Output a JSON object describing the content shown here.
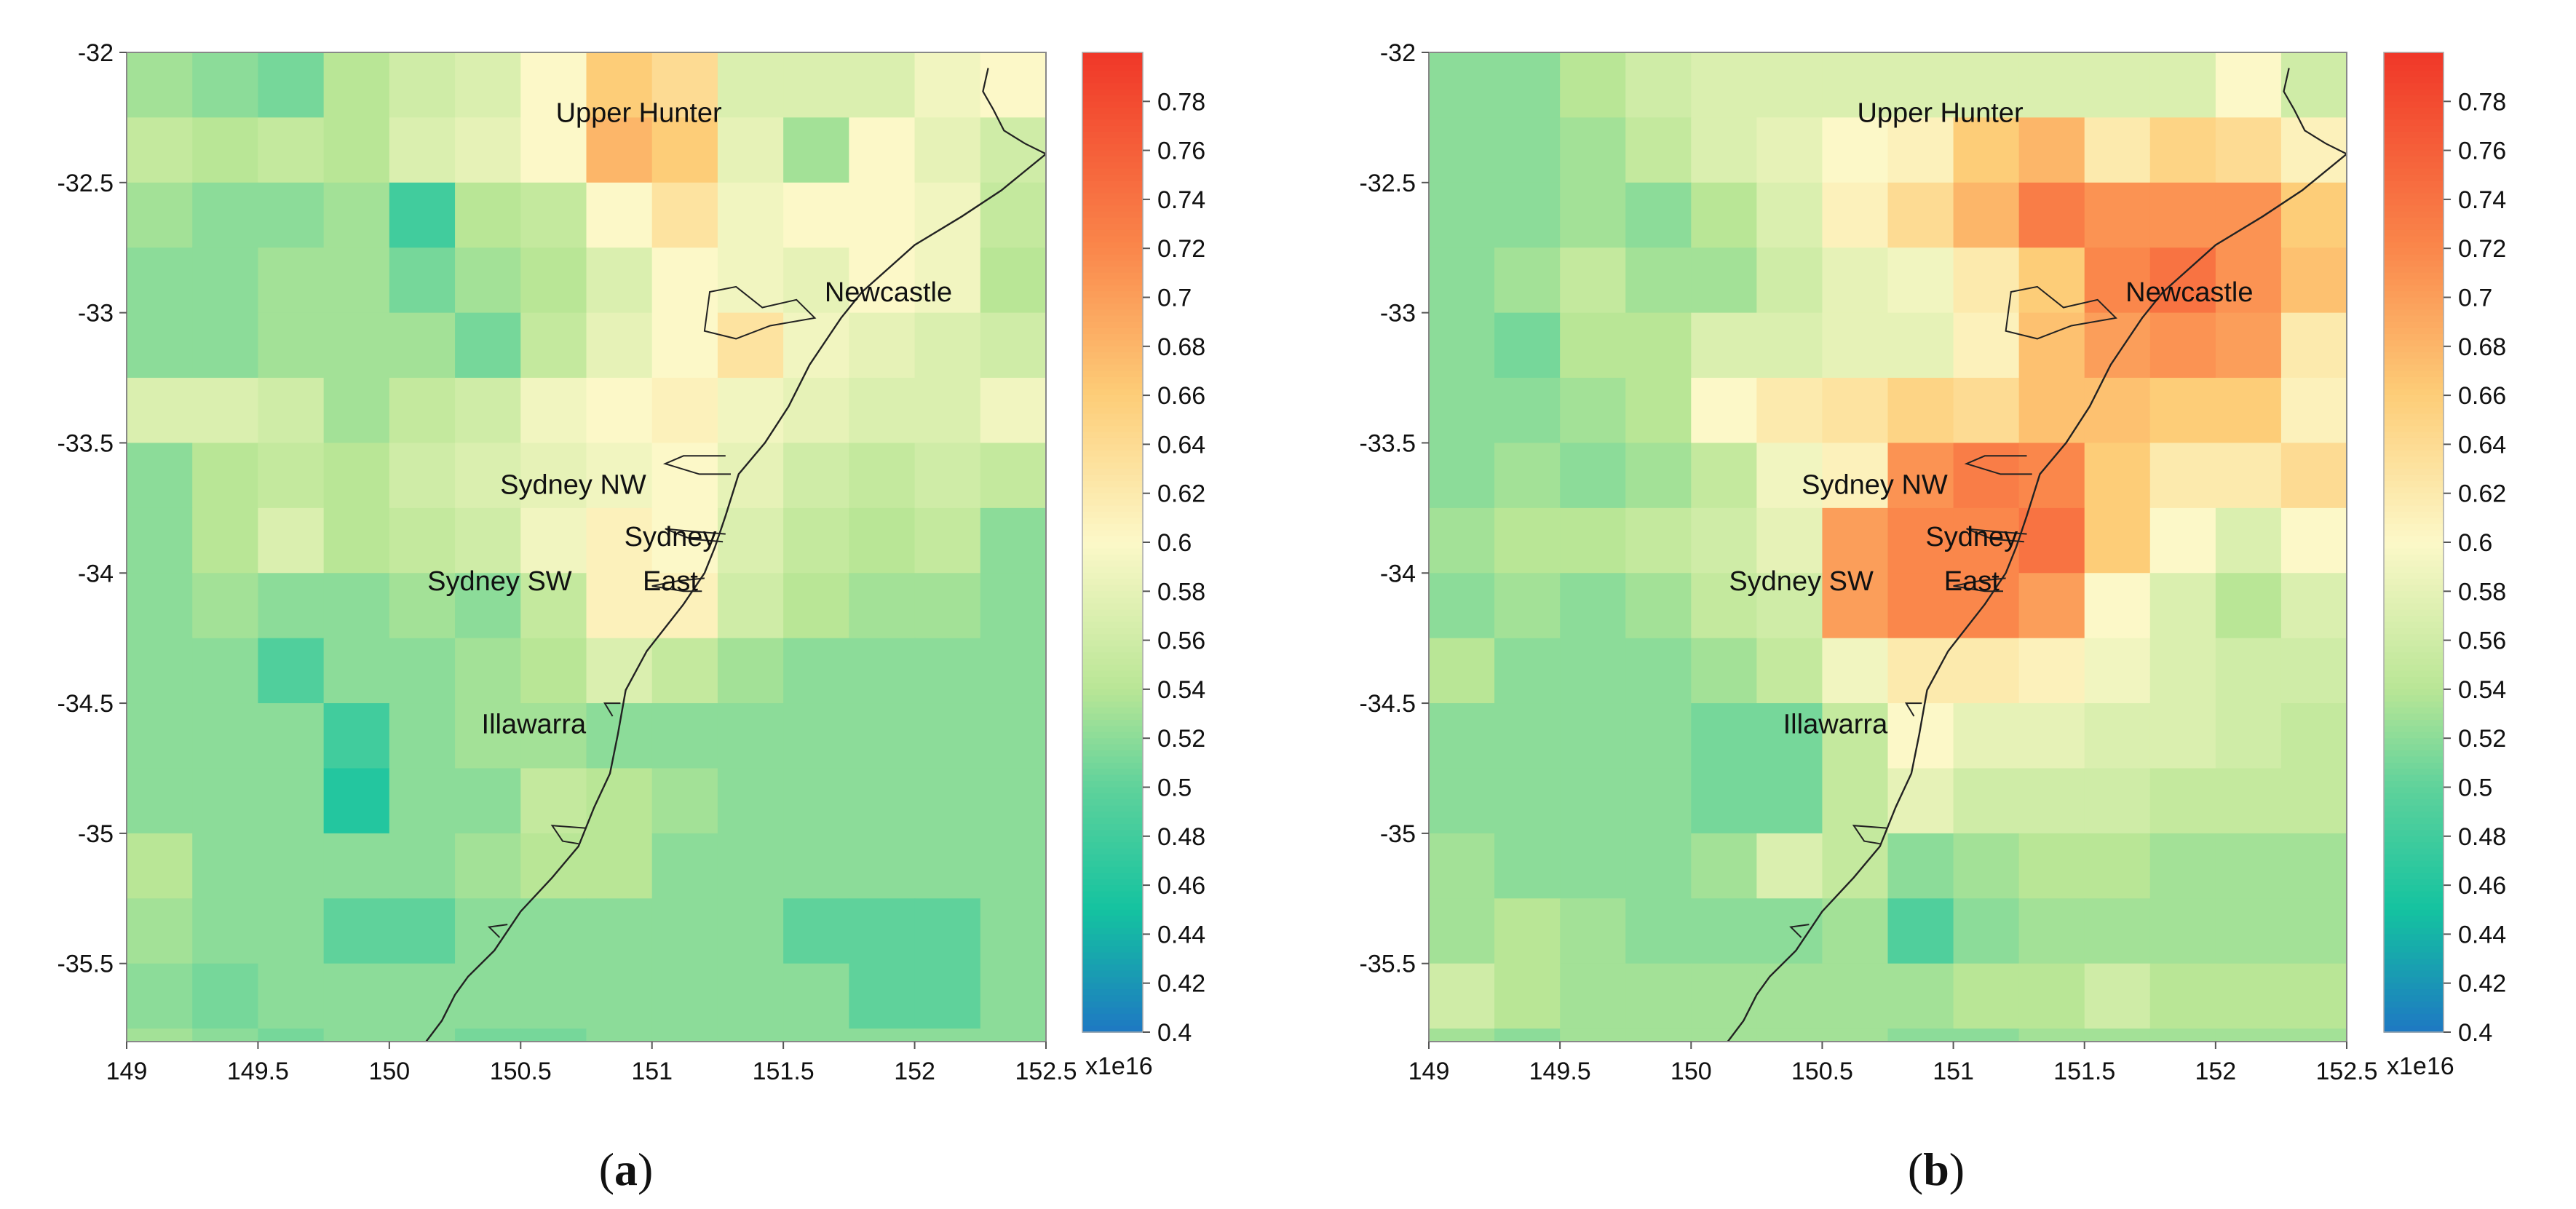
{
  "chart_data": [
    {
      "type": "heatmap",
      "panel_label": "a",
      "x_ticks": [
        "149",
        "149.5",
        "150",
        "150.5",
        "151",
        "151.5",
        "152",
        "152.5"
      ],
      "y_ticks": [
        "-32",
        "-32.5",
        "-33",
        "-33.5",
        "-34",
        "-34.5",
        "-35",
        "-35.5"
      ],
      "xlim": [
        149,
        152.5
      ],
      "ylim": [
        -35.8,
        -32
      ],
      "colorbar": {
        "ticks": [
          "0.78",
          "0.76",
          "0.74",
          "0.72",
          "0.7",
          "0.68",
          "0.66",
          "0.64",
          "0.62",
          "0.6",
          "0.58",
          "0.56",
          "0.54",
          "0.52",
          "0.5",
          "0.48",
          "0.46",
          "0.44",
          "0.42",
          "0.4"
        ],
        "range": [
          0.4,
          0.8
        ],
        "scale_label": "x1e16"
      },
      "cities": [
        {
          "name": "Upper Hunter",
          "lon": 150.95,
          "lat": -32.23
        },
        {
          "name": "Newcastle",
          "lon": 151.9,
          "lat": -32.92
        },
        {
          "name": "Sydney NW",
          "lon": 150.7,
          "lat": -33.66
        },
        {
          "name": "Sydney",
          "lon": 151.07,
          "lat": -33.86
        },
        {
          "name": "East",
          "lon": 151.07,
          "lat": -34.03
        },
        {
          "name": "Sydney SW",
          "lon": 150.42,
          "lat": -34.03
        },
        {
          "name": "Illawarra",
          "lon": 150.55,
          "lat": -34.58
        }
      ],
      "grid_origin": {
        "lon": 149,
        "lat": -32
      },
      "cell_size": 0.25,
      "grid": [
        [
          0.53,
          0.52,
          0.51,
          0.54,
          0.56,
          0.57,
          0.6,
          0.66,
          0.64,
          0.57,
          0.57,
          0.57,
          0.59,
          0.6
        ],
        [
          0.55,
          0.54,
          0.55,
          0.54,
          0.57,
          0.58,
          0.6,
          0.68,
          0.66,
          0.58,
          0.53,
          0.6,
          0.58,
          0.56
        ],
        [
          0.53,
          0.52,
          0.52,
          0.53,
          0.48,
          0.54,
          0.55,
          0.6,
          0.63,
          0.59,
          0.6,
          0.6,
          0.59,
          0.55
        ],
        [
          0.52,
          0.52,
          0.53,
          0.53,
          0.51,
          0.53,
          0.54,
          0.57,
          0.6,
          0.59,
          0.58,
          0.6,
          0.59,
          0.54
        ],
        [
          0.52,
          0.52,
          0.53,
          0.53,
          0.53,
          0.51,
          0.55,
          0.58,
          0.6,
          0.63,
          0.59,
          0.58,
          0.57,
          0.56
        ],
        [
          0.57,
          0.57,
          0.56,
          0.53,
          0.55,
          0.56,
          0.59,
          0.6,
          0.61,
          0.59,
          0.58,
          0.57,
          0.57,
          0.59
        ],
        [
          0.52,
          0.54,
          0.55,
          0.54,
          0.56,
          0.57,
          0.58,
          0.59,
          0.6,
          0.58,
          0.56,
          0.55,
          0.56,
          0.55
        ],
        [
          0.52,
          0.54,
          0.57,
          0.54,
          0.55,
          0.56,
          0.59,
          0.61,
          0.6,
          0.57,
          0.55,
          0.54,
          0.55,
          0.52
        ],
        [
          0.52,
          0.53,
          0.52,
          0.52,
          0.53,
          0.52,
          0.55,
          0.61,
          0.61,
          0.56,
          0.54,
          0.53,
          0.53,
          0.52
        ],
        [
          0.52,
          0.52,
          0.49,
          0.52,
          0.52,
          0.53,
          0.54,
          0.57,
          0.55,
          0.53,
          0.52,
          0.52,
          0.52,
          0.52
        ],
        [
          0.52,
          0.52,
          0.52,
          0.48,
          0.52,
          0.53,
          0.53,
          0.52,
          0.52,
          0.52,
          0.52,
          0.52,
          0.52,
          0.52
        ],
        [
          0.52,
          0.52,
          0.52,
          0.46,
          0.52,
          0.52,
          0.55,
          0.54,
          0.53,
          0.52,
          0.52,
          0.52,
          0.52,
          0.52
        ],
        [
          0.54,
          0.52,
          0.52,
          0.52,
          0.52,
          0.53,
          0.54,
          0.54,
          0.52,
          0.52,
          0.52,
          0.52,
          0.52,
          0.52
        ],
        [
          0.53,
          0.52,
          0.52,
          0.5,
          0.5,
          0.52,
          0.52,
          0.52,
          0.52,
          0.52,
          0.5,
          0.5,
          0.5,
          0.52
        ],
        [
          0.52,
          0.51,
          0.52,
          0.52,
          0.52,
          0.52,
          0.52,
          0.52,
          0.52,
          0.52,
          0.52,
          0.5,
          0.5,
          0.52
        ],
        [
          0.53,
          0.52,
          0.51,
          0.52,
          0.52,
          0.51,
          0.51,
          0.52,
          0.52,
          0.52,
          0.52,
          0.52,
          0.52,
          0.52
        ]
      ]
    },
    {
      "type": "heatmap",
      "panel_label": "b",
      "x_ticks": [
        "149",
        "149.5",
        "150",
        "150.5",
        "151",
        "151.5",
        "152",
        "152.5"
      ],
      "y_ticks": [
        "-32",
        "-32.5",
        "-33",
        "-33.5",
        "-34",
        "-34.5",
        "-35",
        "-35.5"
      ],
      "xlim": [
        149,
        152.5
      ],
      "ylim": [
        -35.8,
        -32
      ],
      "colorbar": {
        "ticks": [
          "0.78",
          "0.76",
          "0.74",
          "0.72",
          "0.7",
          "0.68",
          "0.66",
          "0.64",
          "0.62",
          "0.6",
          "0.58",
          "0.56",
          "0.54",
          "0.52",
          "0.5",
          "0.48",
          "0.46",
          "0.44",
          "0.42",
          "0.4"
        ],
        "range": [
          0.4,
          0.8
        ],
        "scale_label": "x1e16"
      },
      "cities": [
        {
          "name": "Upper Hunter",
          "lon": 150.95,
          "lat": -32.23
        },
        {
          "name": "Newcastle",
          "lon": 151.9,
          "lat": -32.92
        },
        {
          "name": "Sydney NW",
          "lon": 150.7,
          "lat": -33.66
        },
        {
          "name": "Sydney",
          "lon": 151.07,
          "lat": -33.86
        },
        {
          "name": "East",
          "lon": 151.07,
          "lat": -34.03
        },
        {
          "name": "Sydney SW",
          "lon": 150.42,
          "lat": -34.03
        },
        {
          "name": "Illawarra",
          "lon": 150.55,
          "lat": -34.58
        }
      ],
      "grid_origin": {
        "lon": 149,
        "lat": -32
      },
      "cell_size": 0.25,
      "grid": [
        [
          0.52,
          0.52,
          0.54,
          0.56,
          0.57,
          0.57,
          0.57,
          0.57,
          0.57,
          0.57,
          0.57,
          0.57,
          0.6,
          0.56
        ],
        [
          0.52,
          0.52,
          0.53,
          0.55,
          0.57,
          0.58,
          0.6,
          0.61,
          0.66,
          0.68,
          0.62,
          0.65,
          0.64,
          0.61
        ],
        [
          0.52,
          0.52,
          0.53,
          0.52,
          0.54,
          0.57,
          0.61,
          0.64,
          0.68,
          0.73,
          0.71,
          0.71,
          0.71,
          0.66
        ],
        [
          0.52,
          0.53,
          0.55,
          0.53,
          0.53,
          0.56,
          0.58,
          0.59,
          0.62,
          0.66,
          0.72,
          0.74,
          0.71,
          0.67
        ],
        [
          0.52,
          0.51,
          0.54,
          0.54,
          0.57,
          0.57,
          0.58,
          0.58,
          0.61,
          0.67,
          0.7,
          0.71,
          0.7,
          0.62
        ],
        [
          0.52,
          0.52,
          0.53,
          0.54,
          0.6,
          0.62,
          0.63,
          0.65,
          0.64,
          0.67,
          0.67,
          0.66,
          0.66,
          0.61
        ],
        [
          0.52,
          0.53,
          0.52,
          0.53,
          0.55,
          0.59,
          0.61,
          0.71,
          0.73,
          0.72,
          0.66,
          0.62,
          0.62,
          0.64
        ],
        [
          0.53,
          0.54,
          0.54,
          0.55,
          0.56,
          0.58,
          0.7,
          0.72,
          0.72,
          0.74,
          0.66,
          0.6,
          0.57,
          0.6
        ],
        [
          0.52,
          0.53,
          0.52,
          0.53,
          0.55,
          0.56,
          0.7,
          0.72,
          0.72,
          0.7,
          0.6,
          0.57,
          0.54,
          0.57
        ],
        [
          0.54,
          0.52,
          0.52,
          0.52,
          0.53,
          0.55,
          0.59,
          0.62,
          0.62,
          0.61,
          0.59,
          0.57,
          0.56,
          0.56
        ],
        [
          0.52,
          0.52,
          0.52,
          0.52,
          0.51,
          0.51,
          0.55,
          0.6,
          0.58,
          0.58,
          0.57,
          0.57,
          0.56,
          0.55
        ],
        [
          0.52,
          0.52,
          0.52,
          0.52,
          0.51,
          0.51,
          0.55,
          0.58,
          0.56,
          0.56,
          0.56,
          0.55,
          0.55,
          0.55
        ],
        [
          0.53,
          0.52,
          0.52,
          0.52,
          0.53,
          0.57,
          0.55,
          0.52,
          0.53,
          0.54,
          0.54,
          0.53,
          0.53,
          0.53
        ],
        [
          0.53,
          0.54,
          0.53,
          0.52,
          0.52,
          0.52,
          0.53,
          0.49,
          0.52,
          0.53,
          0.53,
          0.53,
          0.53,
          0.53
        ],
        [
          0.56,
          0.54,
          0.53,
          0.53,
          0.53,
          0.53,
          0.53,
          0.53,
          0.54,
          0.54,
          0.56,
          0.54,
          0.54,
          0.54
        ],
        [
          0.53,
          0.52,
          0.53,
          0.53,
          0.53,
          0.53,
          0.53,
          0.52,
          0.52,
          0.53,
          0.53,
          0.53,
          0.53,
          0.53
        ]
      ]
    }
  ]
}
